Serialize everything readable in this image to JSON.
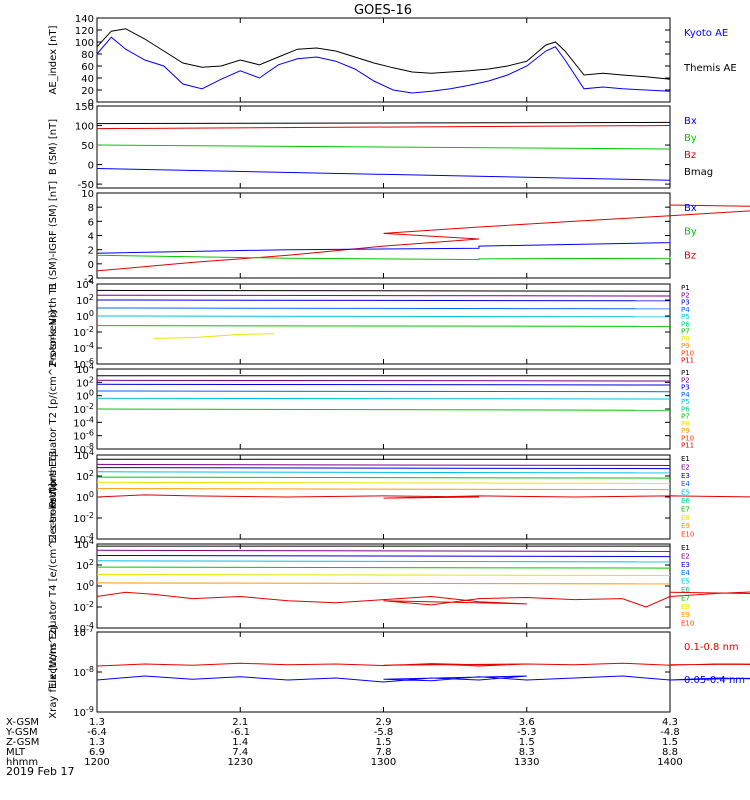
{
  "page": {
    "title": "GOES-16",
    "date": "2019 Feb 17",
    "footer_labels": [
      "X-GSM",
      "Y-GSM",
      "Z-GSM",
      "MLT",
      "hhmm"
    ],
    "footer_columns": [
      [
        "1.3",
        "-6.4",
        "1.3",
        "6.9",
        "1200"
      ],
      [
        "2.1",
        "-6.1",
        "1.4",
        "7.4",
        "1230"
      ],
      [
        "2.9",
        "-5.8",
        "1.5",
        "7.8",
        "1300"
      ],
      [
        "3.6",
        "-5.3",
        "1.5",
        "8.3",
        "1330"
      ],
      [
        "4.3",
        "-4.8",
        "1.5",
        "8.8",
        "1400"
      ]
    ]
  },
  "colors": {
    "black": "#000000",
    "blue": "#0000ff",
    "green": "#00c800",
    "red": "#e60000",
    "ch": [
      "#000000",
      "#80008c",
      "#0000e6",
      "#0064ff",
      "#00c0e6",
      "#00d08c",
      "#00c800",
      "#e6e600",
      "#ff9600",
      "#ff3c00",
      "#e60000"
    ]
  },
  "chart_data": [
    {
      "type": "line",
      "ylabel": "AE_index [nT]",
      "ylim": [
        0,
        140
      ],
      "yticks": [
        "0",
        "20",
        "40",
        "60",
        "80",
        "100",
        "120",
        "140"
      ],
      "legend": [
        "Kyoto AE",
        "Themis AE"
      ],
      "series": [
        {
          "name": "Themis AE",
          "color": "black",
          "x": [
            1200,
            1203,
            1206,
            1210,
            1214,
            1218,
            1222,
            1226,
            1230,
            1234,
            1238,
            1242,
            1246,
            1250,
            1254,
            1258,
            1302,
            1306,
            1310,
            1314,
            1318,
            1322,
            1326,
            1330,
            1334,
            1336,
            1338,
            1342,
            1346,
            1350,
            1355,
            1400
          ],
          "y": [
            92,
            118,
            122,
            105,
            85,
            65,
            58,
            60,
            70,
            62,
            75,
            88,
            90,
            85,
            75,
            65,
            57,
            50,
            48,
            50,
            52,
            55,
            60,
            68,
            95,
            100,
            85,
            45,
            48,
            45,
            42,
            38
          ]
        },
        {
          "name": "Kyoto AE",
          "color": "blue",
          "x": [
            1200,
            1203,
            1206,
            1210,
            1214,
            1218,
            1222,
            1226,
            1230,
            1234,
            1238,
            1242,
            1246,
            1250,
            1254,
            1258,
            1302,
            1306,
            1310,
            1314,
            1318,
            1322,
            1326,
            1330,
            1334,
            1336,
            1338,
            1342,
            1346,
            1350,
            1355,
            1400
          ],
          "y": [
            80,
            108,
            88,
            70,
            60,
            30,
            22,
            38,
            52,
            40,
            62,
            72,
            75,
            68,
            55,
            35,
            20,
            15,
            18,
            22,
            28,
            35,
            45,
            60,
            85,
            92,
            70,
            22,
            25,
            22,
            20,
            18
          ]
        }
      ]
    },
    {
      "type": "line",
      "ylabel": "B (SM) [nT]",
      "ylim": [
        -60,
        150
      ],
      "yticks": [
        "150",
        "100",
        "50",
        "0",
        "-50"
      ],
      "legend": [
        "Bx",
        "By",
        "Bz",
        "Bmag"
      ],
      "series": [
        {
          "name": "Bmag",
          "color": "black",
          "x": [
            1200,
            1400
          ],
          "y": [
            105,
            108
          ]
        },
        {
          "name": "Bz",
          "color": "red",
          "x": [
            1200,
            1400
          ],
          "y": [
            92,
            100
          ]
        },
        {
          "name": "By",
          "color": "green",
          "x": [
            1200,
            1400
          ],
          "y": [
            50,
            40
          ]
        },
        {
          "name": "Bx",
          "color": "blue",
          "x": [
            1200,
            1400
          ],
          "y": [
            -10,
            -40
          ]
        }
      ]
    },
    {
      "type": "line",
      "ylabel": "B (SM)-IGRF (SM) [nT]",
      "ylim": [
        -2,
        10
      ],
      "yticks": [
        "10",
        "8",
        "6",
        "4",
        "2",
        "0",
        "-2"
      ],
      "legend": [
        "Bx",
        "By",
        "Bz"
      ],
      "series": [
        {
          "name": "Bz",
          "color": "red",
          "x": [
            1200,
            1220,
            1240,
            1260,
            1280,
            1300,
            1320,
            1340,
            1360,
            1380,
            1390,
            1400
          ],
          "y": [
            -1,
            0.2,
            1.2,
            2.5,
            3.5,
            4.3,
            5.2,
            6.0,
            6.8,
            7.6,
            8.0,
            8.3
          ]
        },
        {
          "name": "Bx",
          "color": "blue",
          "x": [
            1200,
            1240,
            1280,
            1320,
            1360,
            1400
          ],
          "y": [
            1.5,
            2.0,
            2.2,
            2.5,
            3.0,
            3.4
          ]
        },
        {
          "name": "By",
          "color": "green",
          "x": [
            1200,
            1240,
            1280,
            1320,
            1360,
            1400
          ],
          "y": [
            1.2,
            0.8,
            0.6,
            0.7,
            0.8,
            1.0
          ]
        }
      ]
    },
    {
      "type": "line",
      "ylabel": "Protons North T1",
      "ylog": [
        -6,
        4
      ],
      "yticks": [
        "10^4",
        "10^2",
        "10^0",
        "10^-2",
        "10^-4",
        "10^-6"
      ],
      "legend": [
        "P1",
        "P2",
        "P3",
        "P4",
        "P5",
        "P6",
        "P7",
        "P8",
        "P9",
        "P10",
        "P11"
      ],
      "series": [
        {
          "name": "P1",
          "ch": 0,
          "x": [
            1200,
            1400
          ],
          "y": [
            3.2,
            3.1
          ]
        },
        {
          "name": "P2",
          "ch": 1,
          "x": [
            1200,
            1400
          ],
          "y": [
            2.6,
            2.5
          ]
        },
        {
          "name": "P3",
          "ch": 2,
          "x": [
            1200,
            1400
          ],
          "y": [
            2.0,
            1.9
          ]
        },
        {
          "name": "P4",
          "ch": 3,
          "x": [
            1200,
            1400
          ],
          "y": [
            1.0,
            0.9
          ]
        },
        {
          "name": "P5",
          "ch": 4,
          "x": [
            1200,
            1400
          ],
          "y": [
            0.0,
            -0.1
          ]
        },
        {
          "name": "P6",
          "ch": 6,
          "x": [
            1200,
            1400
          ],
          "y": [
            -1.2,
            -1.3
          ]
        },
        {
          "name": "P7",
          "ch": 7,
          "x": [
            1212,
            1220,
            1230,
            1237
          ],
          "y": [
            -2.8,
            -2.7,
            -2.3,
            -2.2
          ]
        }
      ]
    },
    {
      "type": "line",
      "ylabel": "Protons Equator T2 [p/(cm^2-s-sr-keV)]",
      "ylog": [
        -8,
        4
      ],
      "yticks": [
        "10^4",
        "10^2",
        "10^0",
        "10^-2",
        "10^-4",
        "10^-6",
        "10^-8"
      ],
      "legend": [
        "P1",
        "P2",
        "P3",
        "P4",
        "P5",
        "P6",
        "P7",
        "P8",
        "P9",
        "P10",
        "P11"
      ],
      "series": [
        {
          "name": "P1",
          "ch": 0,
          "x": [
            1200,
            1400
          ],
          "y": [
            3.0,
            3.0
          ]
        },
        {
          "name": "P2",
          "ch": 1,
          "x": [
            1200,
            1400
          ],
          "y": [
            2.3,
            2.2
          ]
        },
        {
          "name": "P3",
          "ch": 2,
          "x": [
            1200,
            1400
          ],
          "y": [
            1.7,
            1.6
          ]
        },
        {
          "name": "P4",
          "ch": 3,
          "x": [
            1200,
            1400
          ],
          "y": [
            0.7,
            0.6
          ]
        },
        {
          "name": "P5",
          "ch": 4,
          "x": [
            1200,
            1400
          ],
          "y": [
            -0.4,
            -0.5
          ]
        },
        {
          "name": "P6",
          "ch": 6,
          "x": [
            1200,
            1400
          ],
          "y": [
            -2.0,
            -2.2
          ]
        }
      ]
    },
    {
      "type": "line",
      "ylabel": "Electrons North T3",
      "ylog": [
        -4,
        4
      ],
      "yticks": [
        "10^4",
        "10^2",
        "10^0",
        "10^-2",
        "10^-4"
      ],
      "legend": [
        "E1",
        "E2",
        "E3",
        "E4",
        "E5",
        "E6",
        "E7",
        "E8",
        "E9",
        "E10"
      ],
      "series": [
        {
          "name": "E1",
          "ch": 0,
          "x": [
            1200,
            1400
          ],
          "y": [
            3.6,
            3.6
          ]
        },
        {
          "name": "E2",
          "ch": 1,
          "x": [
            1200,
            1400
          ],
          "y": [
            3.1,
            3.0
          ]
        },
        {
          "name": "E3",
          "ch": 2,
          "x": [
            1200,
            1400
          ],
          "y": [
            2.8,
            2.7
          ]
        },
        {
          "name": "E4",
          "ch": 4,
          "x": [
            1200,
            1400
          ],
          "y": [
            2.4,
            2.3
          ]
        },
        {
          "name": "E5",
          "ch": 6,
          "x": [
            1200,
            1400
          ],
          "y": [
            1.9,
            1.8
          ]
        },
        {
          "name": "E6",
          "ch": 7,
          "x": [
            1200,
            1400
          ],
          "y": [
            1.4,
            1.3
          ]
        },
        {
          "name": "E7",
          "ch": 8,
          "x": [
            1200,
            1400
          ],
          "y": [
            0.8,
            0.7
          ]
        },
        {
          "name": "E9",
          "ch": 10,
          "x": [
            1200,
            1210,
            1220,
            1240,
            1260,
            1280,
            1300,
            1320,
            1340,
            1360,
            1380,
            1400
          ],
          "y": [
            0.0,
            0.2,
            0.1,
            0.0,
            0.1,
            0.0,
            -0.1,
            0.1,
            0.0,
            0.1,
            0.0,
            0.1
          ]
        }
      ]
    },
    {
      "type": "line",
      "ylabel": "Electrons Equator T4 [e/(cm^2-s-sr-keV)]",
      "ylog": [
        -4,
        4
      ],
      "yticks": [
        "10^4",
        "10^2",
        "10^0",
        "10^-2",
        "10^-4"
      ],
      "legend": [
        "E1",
        "E2",
        "E3",
        "E4",
        "E5",
        "E6",
        "E7",
        "E8",
        "E9",
        "E10"
      ],
      "series": [
        {
          "name": "E1",
          "ch": 0,
          "x": [
            1200,
            1400
          ],
          "y": [
            3.8,
            3.8
          ]
        },
        {
          "name": "E2",
          "ch": 1,
          "x": [
            1200,
            1400
          ],
          "y": [
            3.4,
            3.3
          ]
        },
        {
          "name": "E3",
          "ch": 2,
          "x": [
            1200,
            1400
          ],
          "y": [
            2.9,
            2.8
          ]
        },
        {
          "name": "E4",
          "ch": 4,
          "x": [
            1200,
            1400
          ],
          "y": [
            2.4,
            2.3
          ]
        },
        {
          "name": "E5",
          "ch": 6,
          "x": [
            1200,
            1400
          ],
          "y": [
            1.8,
            1.7
          ]
        },
        {
          "name": "E6",
          "ch": 7,
          "x": [
            1200,
            1400
          ],
          "y": [
            1.1,
            1.0
          ]
        },
        {
          "name": "E7",
          "ch": 8,
          "x": [
            1200,
            1400
          ],
          "y": [
            0.3,
            0.2
          ]
        },
        {
          "name": "E9",
          "ch": 10,
          "x": [
            1200,
            1206,
            1212,
            1220,
            1230,
            1240,
            1250,
            1260,
            1270,
            1280,
            1290,
            1300,
            1310,
            1320,
            1330,
            1340,
            1350,
            1355,
            1360,
            1370,
            1380,
            1390,
            1400
          ],
          "y": [
            -1.0,
            -0.6,
            -0.8,
            -1.2,
            -1.0,
            -1.4,
            -1.6,
            -1.3,
            -1.0,
            -1.5,
            -1.7,
            -1.4,
            -1.8,
            -1.2,
            -1.1,
            -1.3,
            -1.2,
            -2.0,
            -1.0,
            -0.7,
            -0.5,
            -0.8,
            -0.6
          ]
        }
      ]
    },
    {
      "type": "line",
      "ylabel": "Xray flux [W/m^2]",
      "ylog": [
        -9,
        -7
      ],
      "yticks": [
        "10^-7",
        "10^-8",
        "10^-9"
      ],
      "legend": [
        "0.1-0.8 nm",
        "0.05-0.4 nm"
      ],
      "series": [
        {
          "name": "0.1-0.8 nm",
          "color": "red",
          "x": [
            1200,
            1210,
            1220,
            1230,
            1240,
            1250,
            1260,
            1270,
            1280,
            1290,
            1300,
            1310,
            1320,
            1330,
            1340,
            1350,
            1360,
            1370,
            1380,
            1390,
            1400
          ],
          "y": [
            -7.85,
            -7.8,
            -7.83,
            -7.78,
            -7.82,
            -7.8,
            -7.84,
            -7.79,
            -7.82,
            -7.8,
            -7.83,
            -7.8,
            -7.85,
            -7.8,
            -7.82,
            -7.78,
            -7.83,
            -7.8,
            -7.82,
            -7.79,
            -7.82
          ]
        },
        {
          "name": "0.05-0.4 nm",
          "color": "blue",
          "x": [
            1200,
            1210,
            1220,
            1230,
            1240,
            1250,
            1260,
            1270,
            1280,
            1290,
            1300,
            1310,
            1320,
            1330,
            1340,
            1350,
            1360,
            1370,
            1380,
            1390,
            1400
          ],
          "y": [
            -8.2,
            -8.1,
            -8.18,
            -8.12,
            -8.2,
            -8.15,
            -8.25,
            -8.15,
            -8.2,
            -8.1,
            -8.18,
            -8.22,
            -8.12,
            -8.2,
            -8.15,
            -8.1,
            -8.2,
            -8.15,
            -8.18,
            -8.12,
            -8.2
          ]
        }
      ]
    }
  ]
}
